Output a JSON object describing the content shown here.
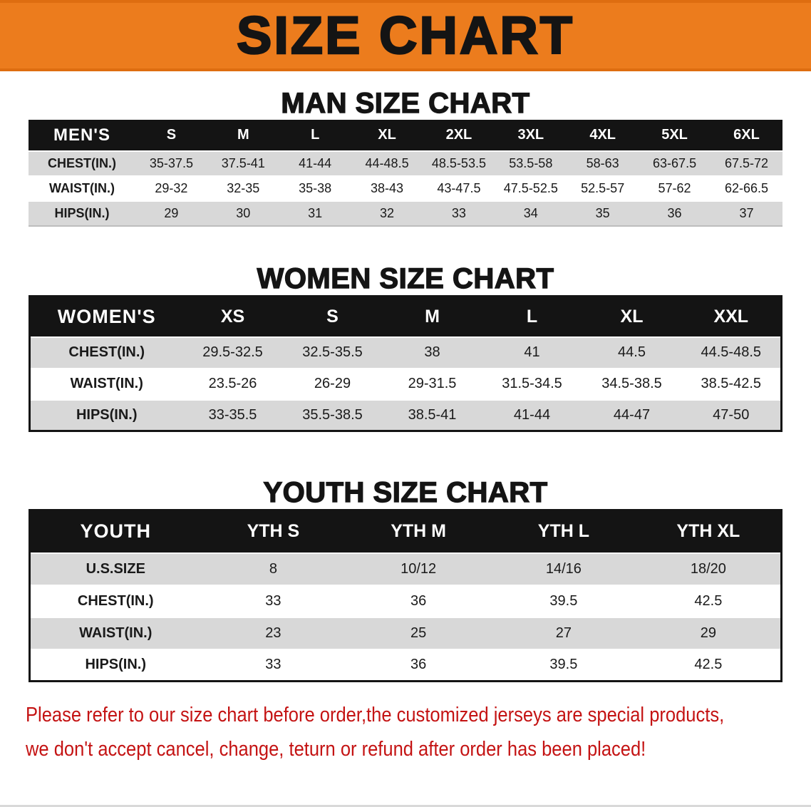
{
  "banner": {
    "title": "SIZE CHART"
  },
  "colors": {
    "banner-bg": "#ec7c1d",
    "banner-edge": "#de6d10",
    "table-head-bg": "#141414",
    "row-gray": "#d8d8d8",
    "accent-red": "#c41313"
  },
  "sections": {
    "men": {
      "heading": "MAN SIZE CHART",
      "header": [
        "MEN'S",
        "S",
        "M",
        "L",
        "XL",
        "2XL",
        "3XL",
        "4XL",
        "5XL",
        "6XL"
      ],
      "rows": [
        [
          "CHEST(IN.)",
          "35-37.5",
          "37.5-41",
          "41-44",
          "44-48.5",
          "48.5-53.5",
          "53.5-58",
          "58-63",
          "63-67.5",
          "67.5-72"
        ],
        [
          "WAIST(IN.)",
          "29-32",
          "32-35",
          "35-38",
          "38-43",
          "43-47.5",
          "47.5-52.5",
          "52.5-57",
          "57-62",
          "62-66.5"
        ],
        [
          "HIPS(IN.)",
          "29",
          "30",
          "31",
          "32",
          "33",
          "34",
          "35",
          "36",
          "37"
        ]
      ]
    },
    "women": {
      "heading": "WOMEN SIZE CHART",
      "header": [
        "WOMEN'S",
        "XS",
        "S",
        "M",
        "L",
        "XL",
        "XXL"
      ],
      "rows": [
        [
          "CHEST(IN.)",
          "29.5-32.5",
          "32.5-35.5",
          "38",
          "41",
          "44.5",
          "44.5-48.5"
        ],
        [
          "WAIST(IN.)",
          "23.5-26",
          "26-29",
          "29-31.5",
          "31.5-34.5",
          "34.5-38.5",
          "38.5-42.5"
        ],
        [
          "HIPS(IN.)",
          "33-35.5",
          "35.5-38.5",
          "38.5-41",
          "41-44",
          "44-47",
          "47-50"
        ]
      ]
    },
    "youth": {
      "heading": "YOUTH SIZE CHART",
      "header": [
        "YOUTH",
        "YTH S",
        "YTH M",
        "YTH L",
        "YTH XL"
      ],
      "rows": [
        [
          "U.S.SIZE",
          "8",
          "10/12",
          "14/16",
          "18/20"
        ],
        [
          "CHEST(IN.)",
          "33",
          "36",
          "39.5",
          "42.5"
        ],
        [
          "WAIST(IN.)",
          "23",
          "25",
          "27",
          "29"
        ],
        [
          "HIPS(IN.)",
          "33",
          "36",
          "39.5",
          "42.5"
        ]
      ]
    }
  },
  "disclaimer": {
    "line1": "Please refer to our size chart before order,the customized jerseys are special products,",
    "line2": "we don't accept cancel, change, teturn or refund after order has been placed!"
  }
}
